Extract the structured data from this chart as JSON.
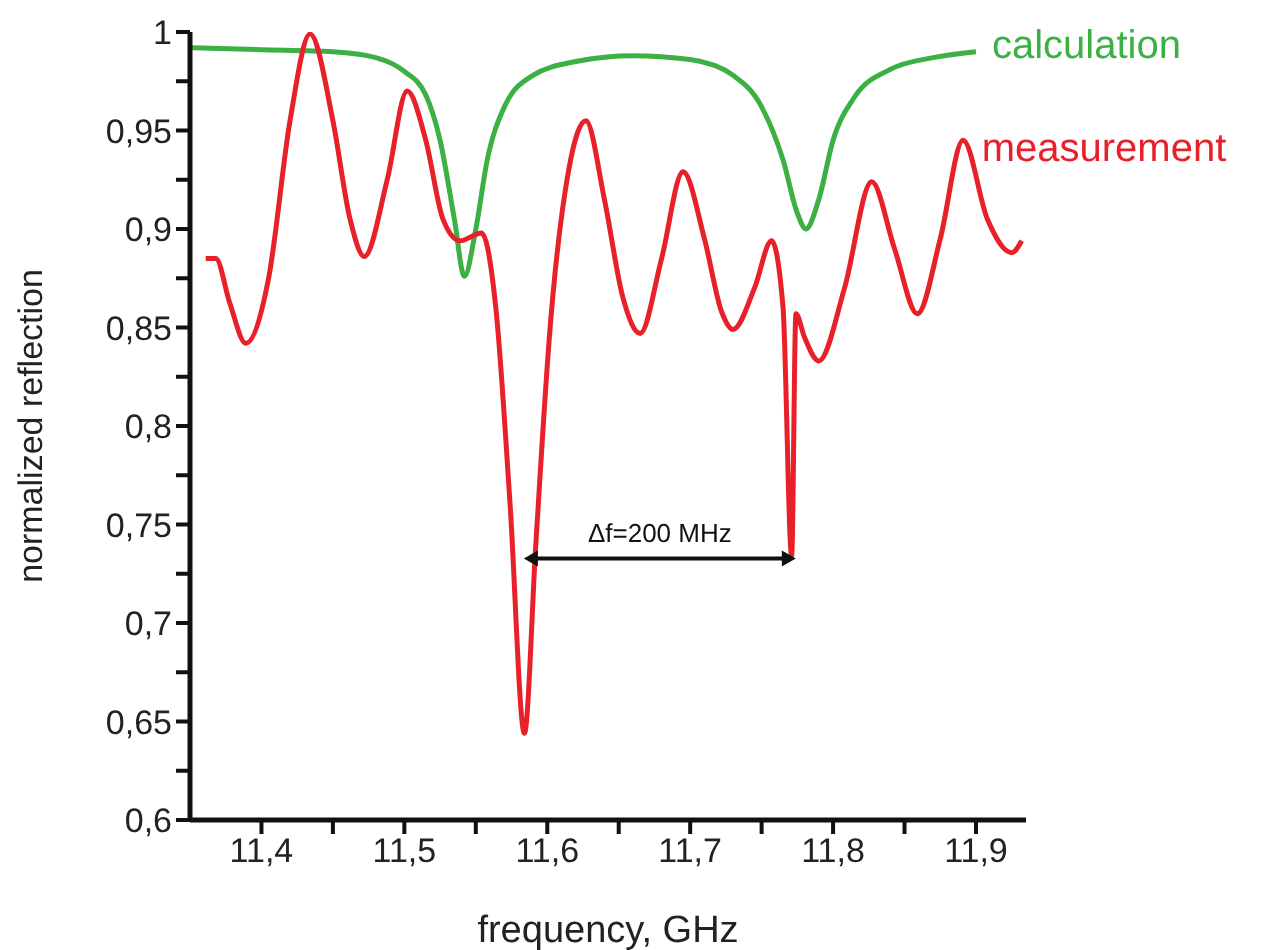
{
  "chart_data": {
    "type": "line",
    "xlabel": "frequency, GHz",
    "ylabel": "normalized reflection",
    "xlim": [
      11.35,
      11.935
    ],
    "ylim": [
      0.6,
      1
    ],
    "xticks": [
      {
        "value": 11.4,
        "label": "11,4"
      },
      {
        "value": 11.45,
        "label": null
      },
      {
        "value": 11.5,
        "label": "11,5"
      },
      {
        "value": 11.55,
        "label": null
      },
      {
        "value": 11.6,
        "label": "11,6"
      },
      {
        "value": 11.65,
        "label": null
      },
      {
        "value": 11.7,
        "label": "11,7"
      },
      {
        "value": 11.75,
        "label": null
      },
      {
        "value": 11.8,
        "label": "11,8"
      },
      {
        "value": 11.85,
        "label": null
      },
      {
        "value": 11.9,
        "label": "11,9"
      }
    ],
    "yticks": [
      {
        "value": 0.6,
        "label": "0,6"
      },
      {
        "value": 0.625,
        "label": null
      },
      {
        "value": 0.65,
        "label": "0,65"
      },
      {
        "value": 0.675,
        "label": null
      },
      {
        "value": 0.7,
        "label": "0,7"
      },
      {
        "value": 0.725,
        "label": null
      },
      {
        "value": 0.75,
        "label": "0,75"
      },
      {
        "value": 0.775,
        "label": null
      },
      {
        "value": 0.8,
        "label": "0,8"
      },
      {
        "value": 0.825,
        "label": null
      },
      {
        "value": 0.85,
        "label": "0,85"
      },
      {
        "value": 0.875,
        "label": null
      },
      {
        "value": 0.9,
        "label": "0,9"
      },
      {
        "value": 0.925,
        "label": null
      },
      {
        "value": 0.95,
        "label": "0,95"
      },
      {
        "value": 0.975,
        "label": null
      },
      {
        "value": 1,
        "label": "1"
      }
    ],
    "grid": false,
    "legend": false,
    "marker": "none",
    "line_style": "solid",
    "annotations": [
      "Δf=200 MHz"
    ],
    "series": [
      {
        "name": "calculation",
        "color": "#3cb043",
        "x": [
          11.35,
          11.4,
          11.45,
          11.48,
          11.5,
          11.515,
          11.525,
          11.535,
          11.542,
          11.55,
          11.558,
          11.57,
          11.59,
          11.62,
          11.66,
          11.7,
          11.73,
          11.75,
          11.765,
          11.775,
          11.781,
          11.79,
          11.8,
          11.815,
          11.84,
          11.87,
          11.9
        ],
        "values": [
          0.992,
          0.991,
          0.99,
          0.987,
          0.98,
          0.968,
          0.945,
          0.905,
          0.876,
          0.9,
          0.935,
          0.962,
          0.978,
          0.985,
          0.988,
          0.986,
          0.978,
          0.962,
          0.935,
          0.908,
          0.9,
          0.915,
          0.945,
          0.967,
          0.981,
          0.987,
          0.99
        ]
      },
      {
        "name": "measurement",
        "color": "#e8202a",
        "x": [
          11.361,
          11.368,
          11.378,
          11.389,
          11.405,
          11.42,
          11.434,
          11.45,
          11.462,
          11.472,
          11.488,
          11.502,
          11.515,
          11.527,
          11.539,
          11.554,
          11.564,
          11.574,
          11.584,
          11.592,
          11.602,
          11.615,
          11.627,
          11.64,
          11.653,
          11.665,
          11.68,
          11.695,
          11.71,
          11.722,
          11.73,
          11.745,
          11.757,
          11.765,
          11.771,
          11.774,
          11.78,
          11.79,
          11.808,
          11.827,
          11.843,
          11.859,
          11.875,
          11.891,
          11.908,
          11.925,
          11.932
        ],
        "values": [
          0.885,
          0.885,
          0.862,
          0.842,
          0.875,
          0.955,
          0.999,
          0.955,
          0.905,
          0.886,
          0.925,
          0.97,
          0.945,
          0.905,
          0.894,
          0.898,
          0.86,
          0.76,
          0.644,
          0.74,
          0.85,
          0.93,
          0.955,
          0.915,
          0.865,
          0.847,
          0.885,
          0.929,
          0.895,
          0.858,
          0.849,
          0.87,
          0.894,
          0.86,
          0.734,
          0.857,
          0.845,
          0.833,
          0.87,
          0.924,
          0.89,
          0.857,
          0.895,
          0.945,
          0.905,
          0.888,
          0.894
        ]
      }
    ]
  }
}
